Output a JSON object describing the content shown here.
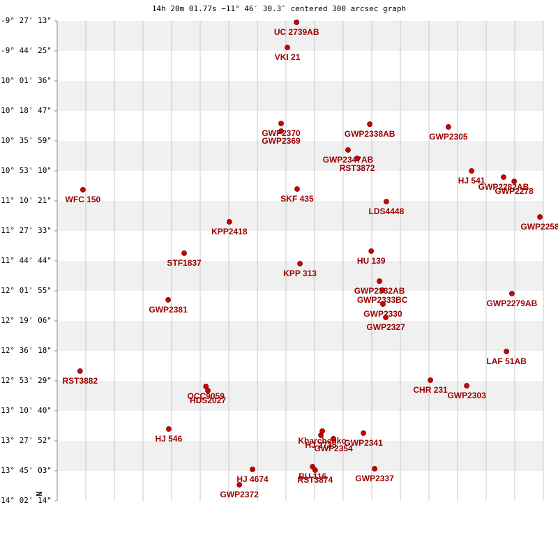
{
  "chart_data": {
    "type": "scatter",
    "title": "14h 20m 01.77s −11° 46′ 30.3″ centered 300 arcsec graph",
    "annotation": "N",
    "grid": true,
    "color": "#d40000",
    "label_color": "#990000",
    "xlim": [
      0,
      17
    ],
    "xticks": [
      0,
      1,
      2,
      3,
      4,
      5,
      6,
      7,
      8,
      9,
      10,
      11,
      12,
      13,
      14,
      15,
      16,
      17
    ],
    "ylim": [
      -14.0372,
      -9.4536
    ],
    "yticks": [
      {
        "value": -9.4536,
        "label": "-9° 27' 13\""
      },
      {
        "value": -9.7403,
        "label": "-9° 44' 25\""
      },
      {
        "value": -10.0267,
        "label": "-10° 01' 36\""
      },
      {
        "value": -10.3131,
        "label": "-10° 18' 47\""
      },
      {
        "value": -10.5997,
        "label": "-10° 35' 59\""
      },
      {
        "value": -10.8861,
        "label": "-10° 53' 10\""
      },
      {
        "value": -11.1725,
        "label": "-11° 10' 21\""
      },
      {
        "value": -11.4592,
        "label": "-11° 27' 33\""
      },
      {
        "value": -11.7456,
        "label": "-11° 44' 44\""
      },
      {
        "value": -12.0319,
        "label": "-12° 01' 55\""
      },
      {
        "value": -12.3183,
        "label": "-12° 19' 06\""
      },
      {
        "value": -12.605,
        "label": "-12° 36' 18\""
      },
      {
        "value": -12.8914,
        "label": "-12° 53' 29\""
      },
      {
        "value": -13.1778,
        "label": "-13° 10' 40\""
      },
      {
        "value": -13.4644,
        "label": "-13° 27' 52\""
      },
      {
        "value": -13.7508,
        "label": "-13° 45' 03\""
      },
      {
        "value": -14.0372,
        "label": "-14° 02' 14\""
      }
    ],
    "labels": [
      "UC 2739AB",
      "VKI  21",
      "GWP2370",
      "GWP2369",
      "GWP2338AB",
      "GWP2305",
      "GWP2347AB",
      "RST3872",
      "HJ  541",
      "GWP2282AB",
      "GWP2278",
      "WFC 150",
      "SKF 435",
      "LDS4448",
      "GWP2258",
      "KPP2418",
      "STF1837",
      "HU  139",
      "KPP 313",
      "GWP2332AB",
      "GWP2333BC",
      "GWP2330",
      "GWP2327",
      "GWP2279AB",
      "GWP2381",
      "LAF  51AB",
      "RST3882",
      "CHR 231",
      "GWP2303",
      "OCC9059",
      "HDS2027",
      "HJ  546",
      "Kharchenko",
      "HJ 2735",
      "GWP2354",
      "GWP2341",
      "HJ 4674",
      "GWP2372",
      "BU  116",
      "RST3874",
      "GWP2337"
    ],
    "x": [
      8.37,
      8.05,
      7.83,
      7.83,
      10.93,
      13.68,
      10.17,
      10.49,
      14.49,
      15.61,
      15.98,
      0.9,
      8.39,
      11.51,
      16.88,
      6.02,
      4.44,
      10.98,
      8.49,
      11.27,
      11.37,
      11.39,
      11.49,
      15.9,
      3.88,
      15.71,
      0.8,
      13.05,
      14.32,
      5.2,
      5.27,
      3.9,
      9.27,
      9.22,
      9.66,
      10.71,
      6.83,
      6.37,
      8.93,
      9.02,
      11.1
    ],
    "values": [
      -9.467,
      -9.707,
      -10.433,
      -10.506,
      -10.44,
      -10.466,
      -10.686,
      -10.766,
      -10.886,
      -10.946,
      -10.986,
      -11.066,
      -11.059,
      -11.179,
      -11.326,
      -11.372,
      -11.672,
      -11.652,
      -11.772,
      -11.939,
      -12.025,
      -12.158,
      -12.285,
      -12.058,
      -12.118,
      -12.611,
      -12.798,
      -12.885,
      -12.938,
      -12.945,
      -12.985,
      -13.351,
      -13.371,
      -13.411,
      -13.444,
      -13.391,
      -13.737,
      -13.884,
      -13.711,
      -13.744,
      -13.731
    ]
  }
}
